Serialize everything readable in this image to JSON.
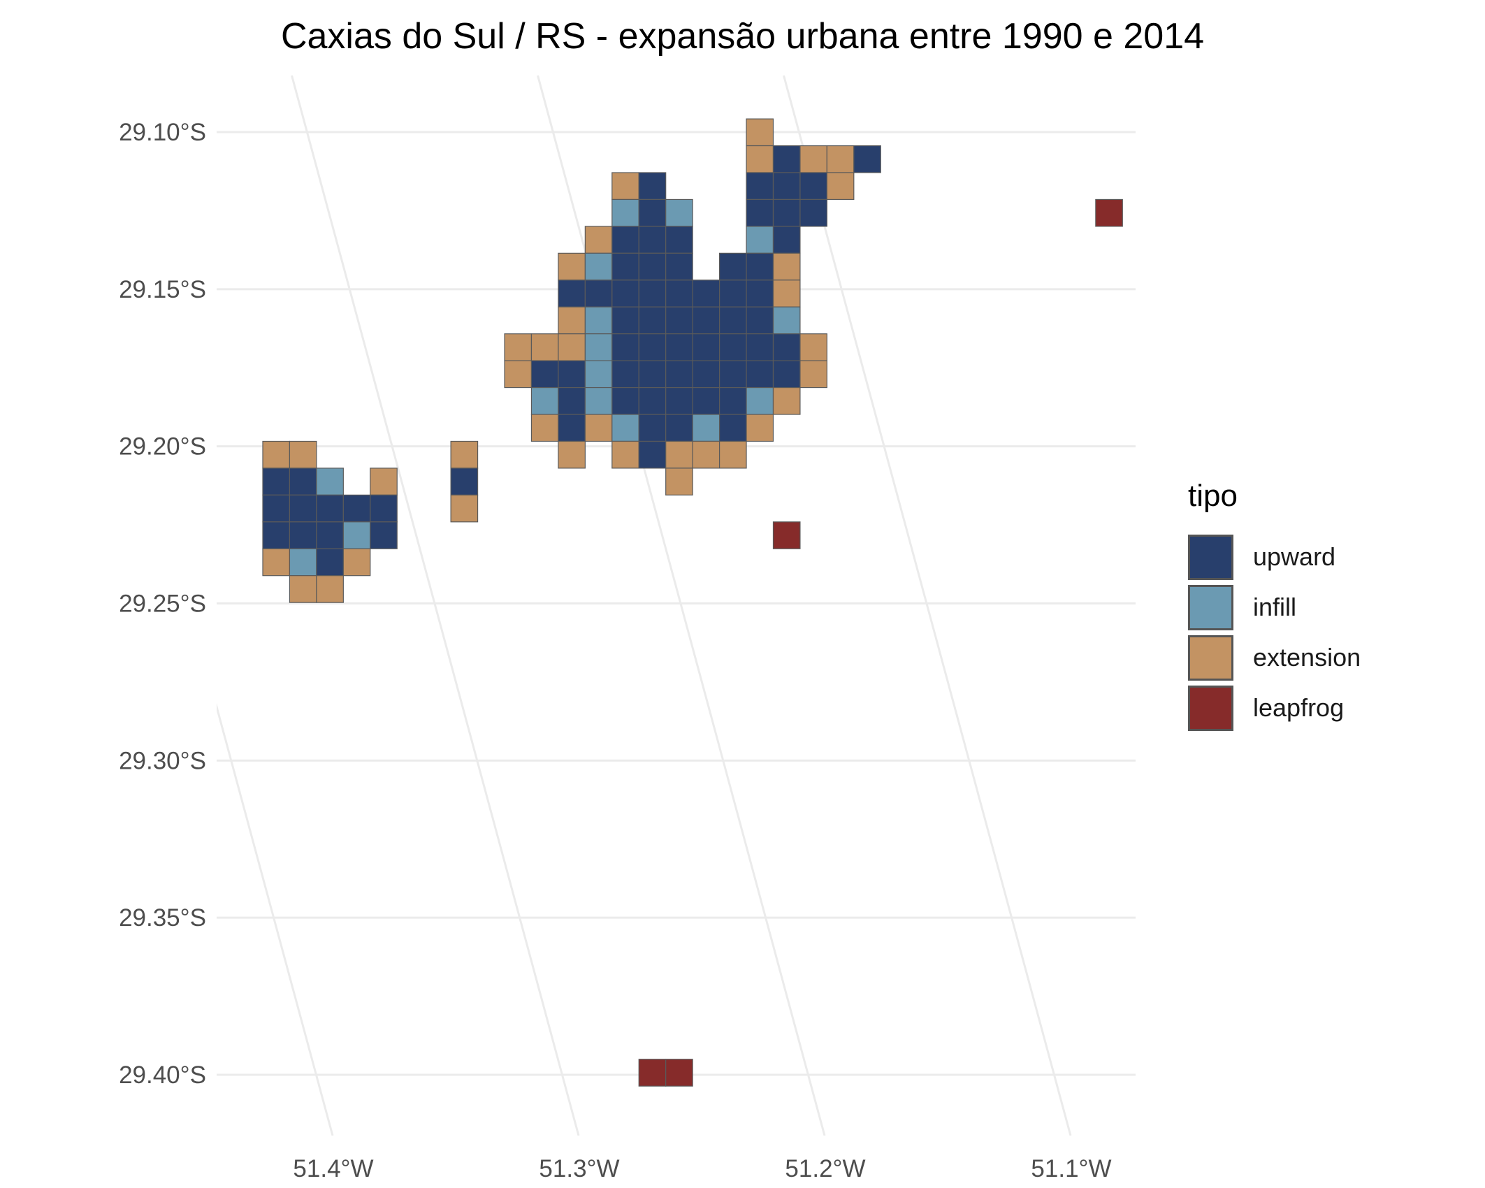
{
  "title": "Caxias do Sul / RS - expansão urbana entre 1990 e 2014",
  "legend": {
    "title": "tipo",
    "items": [
      {
        "key": "upward",
        "label": "upward",
        "color": "#283F6C"
      },
      {
        "key": "infill",
        "label": "infill",
        "color": "#6B9AB2"
      },
      {
        "key": "extension",
        "label": "extension",
        "color": "#C39363"
      },
      {
        "key": "leapfrog",
        "label": "leapfrog",
        "color": "#862B2A"
      }
    ]
  },
  "axes": {
    "lat_labels": [
      "29.10°S",
      "29.15°S",
      "29.20°S",
      "29.25°S",
      "29.30°S",
      "29.35°S",
      "29.40°S"
    ],
    "lon_labels": [
      "51.4°W",
      "51.3°W",
      "51.2°W",
      "51.1°W"
    ]
  },
  "colors": {
    "gridline": "#EBEBEB",
    "cell_border": "#5A5A5A",
    "background": "#FFFFFF"
  },
  "chart_data": {
    "type": "heatmap",
    "title": "Caxias do Sul / RS - expansão urbana entre 1990 e 2014",
    "legend_title": "tipo",
    "legend_position": "right",
    "grid": true,
    "categories": [
      "upward",
      "infill",
      "extension",
      "leapfrog"
    ],
    "lat_ticks": [
      -29.1,
      -29.15,
      -29.2,
      -29.25,
      -29.3,
      -29.35,
      -29.4
    ],
    "lon_ticks": [
      -51.4,
      -51.3,
      -51.2,
      -51.1
    ],
    "lat_range": [
      -29.418,
      -29.083
    ],
    "lon_range": [
      -51.45,
      -51.07
    ],
    "grid_origin_lat": -29.0958,
    "grid_origin_lon": -51.425,
    "cell_size_deg": 0.00855,
    "rows": [
      {
        "r": 0,
        "cells": [
          [
            18,
            "extension"
          ]
        ]
      },
      {
        "r": 1,
        "cells": [
          [
            18,
            "extension"
          ],
          [
            19,
            "upward"
          ],
          [
            20,
            "extension"
          ],
          [
            21,
            "extension"
          ],
          [
            22,
            "upward"
          ]
        ]
      },
      {
        "r": 2,
        "cells": [
          [
            13,
            "extension"
          ],
          [
            14,
            "upward"
          ],
          [
            18,
            "upward"
          ],
          [
            19,
            "upward"
          ],
          [
            20,
            "upward"
          ],
          [
            21,
            "extension"
          ]
        ]
      },
      {
        "r": 3,
        "cells": [
          [
            13,
            "infill"
          ],
          [
            14,
            "upward"
          ],
          [
            15,
            "infill"
          ],
          [
            18,
            "upward"
          ],
          [
            19,
            "upward"
          ],
          [
            20,
            "upward"
          ],
          [
            31,
            "leapfrog"
          ]
        ]
      },
      {
        "r": 4,
        "cells": [
          [
            12,
            "extension"
          ],
          [
            13,
            "upward"
          ],
          [
            14,
            "upward"
          ],
          [
            15,
            "upward"
          ],
          [
            18,
            "infill"
          ],
          [
            19,
            "upward"
          ]
        ]
      },
      {
        "r": 5,
        "cells": [
          [
            11,
            "extension"
          ],
          [
            12,
            "infill"
          ],
          [
            13,
            "upward"
          ],
          [
            14,
            "upward"
          ],
          [
            15,
            "upward"
          ],
          [
            17,
            "upward"
          ],
          [
            18,
            "upward"
          ],
          [
            19,
            "extension"
          ]
        ]
      },
      {
        "r": 6,
        "cells": [
          [
            11,
            "upward"
          ],
          [
            12,
            "upward"
          ],
          [
            13,
            "upward"
          ],
          [
            14,
            "upward"
          ],
          [
            15,
            "upward"
          ],
          [
            16,
            "upward"
          ],
          [
            17,
            "upward"
          ],
          [
            18,
            "upward"
          ],
          [
            19,
            "extension"
          ]
        ]
      },
      {
        "r": 7,
        "cells": [
          [
            11,
            "extension"
          ],
          [
            12,
            "infill"
          ],
          [
            13,
            "upward"
          ],
          [
            14,
            "upward"
          ],
          [
            15,
            "upward"
          ],
          [
            16,
            "upward"
          ],
          [
            17,
            "upward"
          ],
          [
            18,
            "upward"
          ],
          [
            19,
            "infill"
          ]
        ]
      },
      {
        "r": 8,
        "cells": [
          [
            9,
            "extension"
          ],
          [
            10,
            "extension"
          ],
          [
            11,
            "extension"
          ],
          [
            12,
            "infill"
          ],
          [
            13,
            "upward"
          ],
          [
            14,
            "upward"
          ],
          [
            15,
            "upward"
          ],
          [
            16,
            "upward"
          ],
          [
            17,
            "upward"
          ],
          [
            18,
            "upward"
          ],
          [
            19,
            "upward"
          ],
          [
            20,
            "extension"
          ]
        ]
      },
      {
        "r": 9,
        "cells": [
          [
            9,
            "extension"
          ],
          [
            10,
            "upward"
          ],
          [
            11,
            "upward"
          ],
          [
            12,
            "infill"
          ],
          [
            13,
            "upward"
          ],
          [
            14,
            "upward"
          ],
          [
            15,
            "upward"
          ],
          [
            16,
            "upward"
          ],
          [
            17,
            "upward"
          ],
          [
            18,
            "upward"
          ],
          [
            19,
            "upward"
          ],
          [
            20,
            "extension"
          ]
        ]
      },
      {
        "r": 10,
        "cells": [
          [
            10,
            "infill"
          ],
          [
            11,
            "upward"
          ],
          [
            12,
            "infill"
          ],
          [
            13,
            "upward"
          ],
          [
            14,
            "upward"
          ],
          [
            15,
            "upward"
          ],
          [
            16,
            "upward"
          ],
          [
            17,
            "upward"
          ],
          [
            18,
            "infill"
          ],
          [
            19,
            "extension"
          ]
        ]
      },
      {
        "r": 11,
        "cells": [
          [
            10,
            "extension"
          ],
          [
            11,
            "upward"
          ],
          [
            12,
            "extension"
          ],
          [
            13,
            "infill"
          ],
          [
            14,
            "upward"
          ],
          [
            15,
            "upward"
          ],
          [
            16,
            "infill"
          ],
          [
            17,
            "upward"
          ],
          [
            18,
            "extension"
          ]
        ]
      },
      {
        "r": 12,
        "cells": [
          [
            0,
            "extension"
          ],
          [
            1,
            "extension"
          ],
          [
            7,
            "extension"
          ],
          [
            11,
            "extension"
          ],
          [
            13,
            "extension"
          ],
          [
            14,
            "upward"
          ],
          [
            15,
            "extension"
          ],
          [
            16,
            "extension"
          ],
          [
            17,
            "extension"
          ]
        ]
      },
      {
        "r": 13,
        "cells": [
          [
            0,
            "upward"
          ],
          [
            1,
            "upward"
          ],
          [
            2,
            "infill"
          ],
          [
            4,
            "extension"
          ],
          [
            7,
            "upward"
          ],
          [
            15,
            "extension"
          ]
        ]
      },
      {
        "r": 14,
        "cells": [
          [
            0,
            "upward"
          ],
          [
            1,
            "upward"
          ],
          [
            2,
            "upward"
          ],
          [
            3,
            "upward"
          ],
          [
            4,
            "upward"
          ],
          [
            7,
            "extension"
          ]
        ]
      },
      {
        "r": 15,
        "cells": [
          [
            0,
            "upward"
          ],
          [
            1,
            "upward"
          ],
          [
            2,
            "upward"
          ],
          [
            3,
            "infill"
          ],
          [
            4,
            "upward"
          ],
          [
            19,
            "leapfrog"
          ]
        ]
      },
      {
        "r": 16,
        "cells": [
          [
            0,
            "extension"
          ],
          [
            1,
            "infill"
          ],
          [
            2,
            "upward"
          ],
          [
            3,
            "extension"
          ]
        ]
      },
      {
        "r": 17,
        "cells": [
          [
            1,
            "extension"
          ],
          [
            2,
            "extension"
          ]
        ]
      },
      {
        "r": 35,
        "cells": [
          [
            14,
            "leapfrog"
          ],
          [
            15,
            "leapfrog"
          ]
        ]
      }
    ]
  }
}
